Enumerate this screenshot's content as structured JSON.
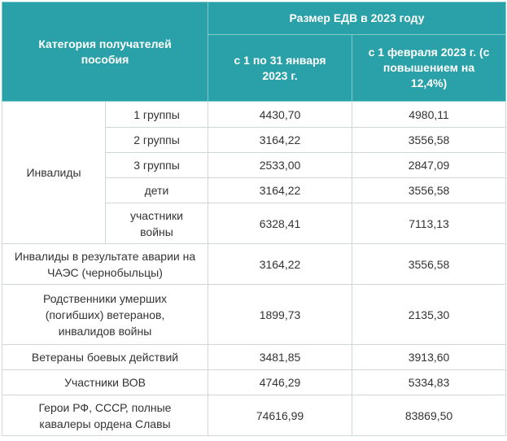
{
  "table": {
    "header": {
      "category": "Категория получателей пособия",
      "size_group": "Размер ЕДВ в 2023 году",
      "jan": "с 1 по 31 января 2023 г.",
      "feb": "с 1 февраля 2023 г. (с повышением на 12,4%)"
    },
    "disabled_label": "Инвалиды",
    "disabled_rows": [
      {
        "sub": "1 группы",
        "jan": "4430,70",
        "feb": "4980,11"
      },
      {
        "sub": "2 группы",
        "jan": "3164,22",
        "feb": "3556,58"
      },
      {
        "sub": "3 группы",
        "jan": "2533,00",
        "feb": "2847,09"
      },
      {
        "sub": "дети",
        "jan": "3164,22",
        "feb": "3556,58"
      },
      {
        "sub": "участники войны",
        "jan": "6328,41",
        "feb": "7113,13"
      }
    ],
    "rows": [
      {
        "label": "Инвалиды в результате аварии на ЧАЭС (чернобыльцы)",
        "jan": "3164,22",
        "feb": "3556,58"
      },
      {
        "label": "Родственники умерших (погибших) ветеранов, инвалидов войны",
        "jan": "1899,73",
        "feb": "2135,30"
      },
      {
        "label": "Ветераны боевых действий",
        "jan": "3481,85",
        "feb": "3913,60"
      },
      {
        "label": "Участники ВОВ",
        "jan": "4746,29",
        "feb": "5334,83"
      },
      {
        "label": "Герои РФ, СССР, полные кавалеры ордена Славы",
        "jan": "74616,99",
        "feb": "83869,50"
      }
    ]
  }
}
